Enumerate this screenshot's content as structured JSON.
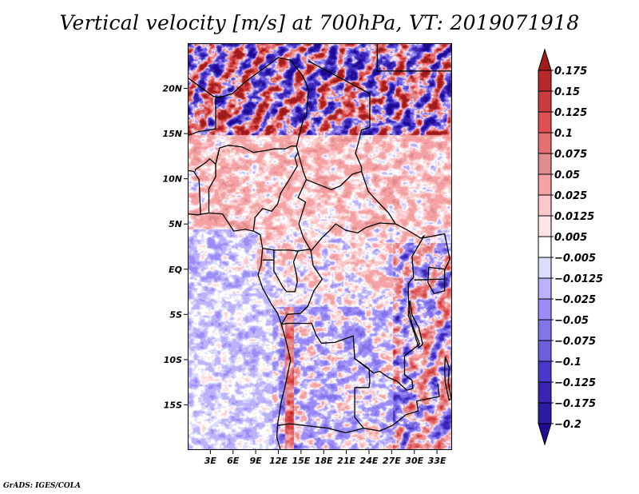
{
  "chart_data": {
    "type": "heatmap",
    "title": "Vertical velocity [m/s] at 700hPa, VT: 2019071918",
    "variable": "Vertical velocity",
    "units": "m/s",
    "level": "700hPa",
    "valid_time": "2019071918",
    "xlabel": "",
    "ylabel": "",
    "x_range_deg_east": [
      0,
      35
    ],
    "y_range_deg_north": [
      -20,
      25
    ],
    "x_ticks": [
      "3E",
      "6E",
      "9E",
      "12E",
      "15E",
      "18E",
      "21E",
      "24E",
      "27E",
      "30E",
      "33E"
    ],
    "x_tick_values": [
      3,
      6,
      9,
      12,
      15,
      18,
      21,
      24,
      27,
      30,
      33
    ],
    "y_ticks": [
      "20N",
      "15N",
      "10N",
      "5N",
      "EQ",
      "5S",
      "10S",
      "15S"
    ],
    "y_tick_values": [
      20,
      15,
      10,
      5,
      0,
      -5,
      -10,
      -15
    ],
    "colorbar": {
      "orientation": "vertical",
      "placement": "right",
      "extend": "both",
      "levels": [
        0.175,
        0.15,
        0.125,
        0.1,
        0.075,
        0.05,
        0.025,
        0.0125,
        0.005,
        -0.005,
        -0.0125,
        -0.025,
        -0.05,
        -0.075,
        -0.1,
        -0.125,
        -0.175,
        -0.2
      ],
      "labels": [
        "0.175",
        "0.15",
        "0.125",
        "0.1",
        "0.075",
        "0.05",
        "0.025",
        "0.0125",
        "0.005",
        "−0.005",
        "−0.0125",
        "−0.025",
        "−0.05",
        "−0.075",
        "−0.1",
        "−0.125",
        "−0.175",
        "−0.2"
      ],
      "colors_top_to_bottom": [
        "#a01c1c",
        "#b82a2a",
        "#cc3c3c",
        "#e05050",
        "#e46e70",
        "#e28c90",
        "#f4a2a4",
        "#fac8ca",
        "#fde4e6",
        "#ffffff",
        "#dcdcfc",
        "#bcb2fa",
        "#9c8cf8",
        "#8474ea",
        "#6e5edc",
        "#4838cc",
        "#3a24b6",
        "#2c1ca4",
        "#1e0a94"
      ]
    },
    "regional_pattern": {
      "sahel_sahara_north_of_15N": "strong alternating updrafts/downdrafts, |w| often > 0.15",
      "west_africa_5N_to_15N": "mostly weak ascent 0.005 to 0.05",
      "gulf_of_guinea_and_atlantic": "weak subsidence -0.005 to -0.05",
      "congo_basin": "mixed weak ascent and descent",
      "east_african_highlands_and_rift": "strong mixed signal, -0.125 to 0.15",
      "angola_escarpment": "narrow bands of ascent up to 0.15 along coast near 13E"
    }
  },
  "footer": {
    "credit": "GrADS: IGES/COLA"
  }
}
